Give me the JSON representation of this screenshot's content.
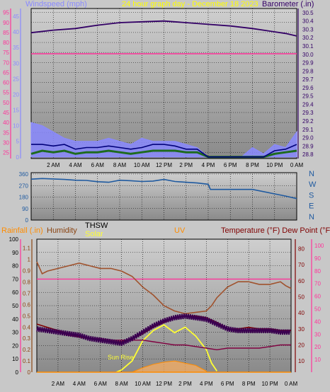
{
  "header": {
    "windspeed_label": "Windspeed (mph)",
    "title": "24 hour graph day - December 18 2023",
    "barometer_label": "Barometer (.in)"
  },
  "colors": {
    "background": "#c8c8c8",
    "plot_bg_light": "#c4c4c4",
    "plot_bg_dark": "#8e8e8e",
    "windspeed": "#8a8aff",
    "barometer": "#330066",
    "wind_dir": "#1f5aa0",
    "rain": "#ff8c00",
    "humidity": "#8b4513",
    "thsw": "#000000",
    "solar": "#ffff33",
    "uv": "#ff8c00",
    "temperature": "#800000",
    "dewpoint": "#800000",
    "pink": "#ff3399",
    "title": "#ffff00",
    "grid": "#000000"
  },
  "chart_data": [
    {
      "type": "line",
      "name": "wind-barometer",
      "x_labels": [
        "2 AM",
        "4 AM",
        "6 AM",
        "8 AM",
        "10 AM",
        "12 PM",
        "2 PM",
        "4 PM",
        "6 PM",
        "8 PM",
        "10 PM",
        "0 AM"
      ],
      "x_hours": [
        2,
        4,
        6,
        8,
        10,
        12,
        14,
        16,
        18,
        20,
        22,
        24
      ],
      "left_axis": {
        "label": "Windspeed (mph)",
        "ticks": [
          25,
          30,
          35,
          40,
          45,
          50,
          55,
          60,
          65,
          70,
          75,
          80,
          85,
          90,
          95
        ],
        "ylim": [
          22,
          97
        ]
      },
      "left_axis_inner": {
        "ticks": [
          0,
          5,
          10,
          15,
          20,
          25,
          30,
          35,
          40,
          45
        ],
        "ylim": [
          -0.5,
          47.5
        ]
      },
      "right_axis": {
        "label": "Barometer (.in)",
        "ticks": [
          28.8,
          28.9,
          29.0,
          29.1,
          29.2,
          29.3,
          29.4,
          29.5,
          29.6,
          29.7,
          29.8,
          29.9,
          30.0,
          30.1,
          30.2,
          30.3,
          30.4,
          30.5
        ],
        "ylim": [
          28.75,
          30.55
        ]
      },
      "series": [
        {
          "axis": "right",
          "x": [
            0,
            2,
            4,
            6,
            8,
            10,
            12,
            14,
            16,
            18,
            20,
            22,
            23,
            24
          ],
          "y": [
            30.26,
            30.29,
            30.31,
            30.35,
            30.38,
            30.39,
            30.4,
            30.38,
            30.36,
            30.34,
            30.31,
            30.27,
            30.25,
            30.22
          ]
        },
        {
          "axis": "left_inner",
          "x": [
            0,
            24
          ],
          "y": [
            33,
            33
          ]
        },
        {
          "axis": "left_inner",
          "x": [
            0,
            1,
            2,
            3,
            4,
            5,
            6,
            7,
            8,
            9,
            10,
            11,
            12,
            13,
            14,
            15,
            16,
            17,
            18,
            19,
            20,
            21,
            22,
            23,
            24
          ],
          "y": [
            1,
            2,
            1.5,
            2,
            1,
            1.5,
            1.5,
            2,
            1.5,
            1,
            1.5,
            2,
            2,
            2,
            1.5,
            1.5,
            0,
            0,
            0,
            0,
            0,
            0,
            1,
            1.5,
            2
          ]
        },
        {
          "axis": "left_inner",
          "x": [
            0,
            1,
            2,
            3,
            4,
            5,
            6,
            7,
            8,
            9,
            10,
            11,
            12,
            13,
            14,
            15,
            16,
            17,
            18,
            19,
            20,
            21,
            22,
            23,
            24
          ],
          "y": [
            4,
            4,
            3.5,
            4,
            2.5,
            3,
            3,
            3.5,
            3,
            2.5,
            3,
            4,
            4,
            3.5,
            2.5,
            2.5,
            0,
            0,
            0,
            0,
            0,
            0,
            2,
            2.5,
            4
          ]
        },
        {
          "axis": "left_inner",
          "x": [
            0,
            1,
            2,
            3,
            4,
            5,
            6,
            7,
            8,
            9,
            10,
            11,
            12,
            13,
            14,
            15,
            16,
            17,
            18,
            19,
            20,
            21,
            22,
            23,
            24
          ],
          "y": [
            11,
            10,
            8,
            6,
            5,
            5,
            5,
            6,
            5,
            4,
            6,
            5,
            5,
            5,
            4,
            3,
            0,
            0,
            0,
            0,
            3,
            1,
            4,
            3,
            8
          ]
        }
      ]
    },
    {
      "type": "line",
      "name": "wind-direction",
      "x_hours": [
        2,
        4,
        6,
        8,
        10,
        12,
        14,
        16,
        18,
        20,
        22,
        24
      ],
      "left_axis": {
        "ticks": [
          0,
          90,
          180,
          270,
          360
        ],
        "ylim": [
          0,
          360
        ]
      },
      "right_axis": {
        "ticks": [
          "N",
          "W",
          "S",
          "E",
          "N"
        ]
      },
      "series": [
        {
          "x": [
            0,
            1,
            2,
            3,
            4,
            5,
            6,
            7,
            8,
            9,
            10,
            11,
            12,
            13,
            14,
            15,
            16,
            16.2,
            18,
            20,
            22,
            23,
            24
          ],
          "y": [
            320,
            325,
            322,
            318,
            312,
            310,
            300,
            296,
            312,
            308,
            302,
            305,
            318,
            302,
            296,
            290,
            280,
            240,
            240,
            240,
            205,
            188,
            168
          ]
        }
      ]
    },
    {
      "type": "line",
      "name": "rain-humidity-solar-uv-temperature",
      "header_labels": [
        "Rainfall (.in)",
        "Humidity",
        "THSW",
        "Solar",
        "UV",
        "Temperature (°F) Dew Point (°F)"
      ],
      "x_labels": [
        "2 AM",
        "4 AM",
        "6 AM",
        "8 AM",
        "10 AM",
        "12 PM",
        "2 PM",
        "4 PM",
        "6 PM",
        "8 PM",
        "10 PM",
        "0 AM"
      ],
      "x_hours": [
        2,
        4,
        6,
        8,
        10,
        12,
        14,
        16,
        18,
        20,
        22,
        24
      ],
      "annotations": [
        "Sun Rise"
      ],
      "axes": {
        "humidity": {
          "ticks": [
            0,
            10,
            20,
            30,
            40,
            50,
            60,
            70,
            80,
            90,
            100
          ],
          "ylim": [
            0,
            100
          ]
        },
        "rain": {
          "ticks": [
            0,
            0.1,
            0.2,
            0.3,
            0.4,
            0.5,
            0.6,
            0.7,
            0.8,
            0.9,
            1,
            1.1
          ],
          "ylim": [
            0,
            1.18
          ]
        },
        "temperature": {
          "ticks": [
            10,
            20,
            30,
            40,
            50,
            60,
            70,
            80
          ],
          "ylim": [
            3,
            86
          ]
        },
        "thsw": {
          "ticks": [
            10,
            20,
            30,
            40,
            50,
            60,
            70,
            80,
            90,
            100
          ],
          "ylim": [
            0,
            105
          ]
        }
      },
      "series": [
        {
          "id": "temperature",
          "axis": "temperature",
          "x": [
            0,
            1,
            2,
            3,
            4,
            5,
            6,
            7,
            8,
            9,
            10,
            11,
            12,
            13,
            14,
            15,
            16,
            17,
            18,
            19,
            20,
            21,
            22,
            23,
            24
          ],
          "y": [
            33,
            31,
            29,
            27,
            25,
            24,
            23,
            22,
            22,
            24,
            27,
            31,
            34,
            37,
            38,
            38,
            37,
            34,
            30,
            30,
            31,
            30,
            30,
            29,
            29
          ]
        },
        {
          "id": "dewpoint",
          "axis": "temperature",
          "x": [
            0,
            1,
            2,
            3,
            4,
            5,
            6,
            7,
            8,
            9,
            10,
            11,
            12,
            13,
            14,
            15,
            16,
            17,
            18,
            19,
            20,
            21,
            22,
            23,
            24
          ],
          "y": [
            30,
            29,
            28,
            26,
            25,
            24,
            24,
            23,
            23,
            23,
            23,
            22,
            21,
            20,
            20,
            19,
            18,
            17,
            18,
            18,
            18,
            18,
            19,
            20,
            20
          ]
        },
        {
          "id": "thsw",
          "axis": "temperature",
          "x": [
            0,
            1,
            2,
            3,
            4,
            5,
            6,
            7,
            8,
            9,
            10,
            11,
            12,
            13,
            14,
            15,
            16,
            17,
            18,
            19,
            20,
            21,
            22,
            23,
            24
          ],
          "y": [
            30,
            29,
            28,
            27,
            26,
            24,
            23,
            22,
            21,
            24,
            28,
            32,
            35,
            37,
            38,
            37,
            36,
            33,
            30,
            29,
            29,
            29,
            29,
            28,
            28
          ]
        },
        {
          "id": "humidity",
          "axis": "humidity",
          "x": [
            0,
            0.5,
            1,
            2,
            3,
            4,
            5,
            6,
            7,
            8,
            9,
            10,
            11,
            12,
            13,
            14,
            15,
            16,
            16.5,
            17,
            18,
            19,
            20,
            21,
            22,
            23,
            23.5,
            24
          ],
          "y": [
            83,
            74,
            76,
            78,
            80,
            82,
            80,
            78,
            78,
            76,
            72,
            64,
            58,
            50,
            46,
            44,
            45,
            46,
            50,
            56,
            64,
            68,
            68,
            66,
            66,
            68,
            65,
            63
          ]
        },
        {
          "id": "solar",
          "axis": "rain",
          "x": [
            7.5,
            8,
            9,
            10,
            11,
            12,
            13,
            14,
            15,
            16,
            16.5,
            17
          ],
          "y": [
            0,
            0.02,
            0.1,
            0.28,
            0.37,
            0.42,
            0.35,
            0.4,
            0.32,
            0.2,
            0.08,
            0.01
          ]
        },
        {
          "id": "uv",
          "axis": "rain",
          "x": [
            9,
            10,
            11,
            12,
            13,
            14,
            15,
            16
          ],
          "y": [
            0,
            0.04,
            0.07,
            0.09,
            0.1,
            0.08,
            0.06,
            0.01
          ]
        },
        {
          "id": "rain",
          "axis": "rain",
          "x": [
            0,
            24
          ],
          "y": [
            0,
            0
          ]
        },
        {
          "id": "pink-level",
          "axis": "humidity",
          "x": [
            0,
            24
          ],
          "y": [
            70,
            70
          ]
        }
      ]
    }
  ]
}
